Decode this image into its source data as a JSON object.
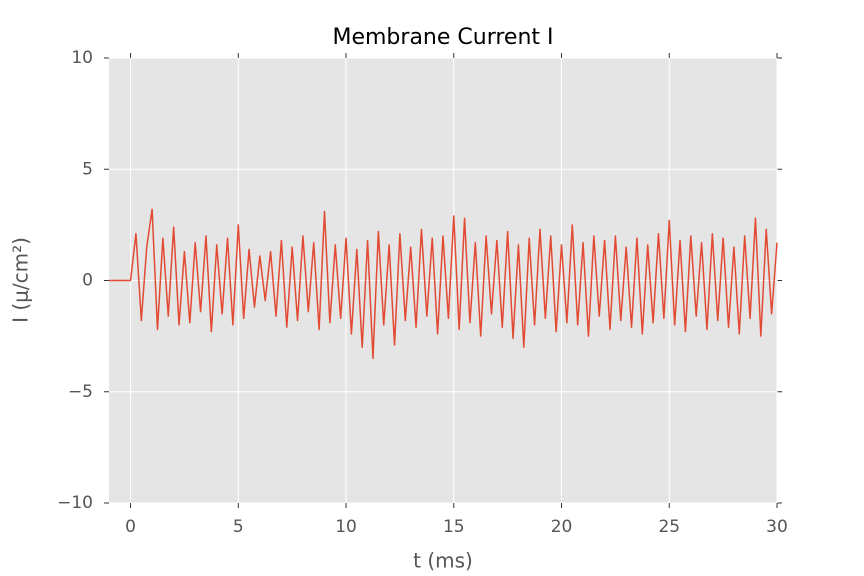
{
  "chart_data": {
    "type": "line",
    "title": "Membrane Current I",
    "xlabel": "t (ms)",
    "ylabel": "I (μ/cm²)",
    "color": "#e24a33",
    "xlim": [
      -1,
      30
    ],
    "ylim": [
      -10,
      10
    ],
    "xticks": [
      0,
      5,
      10,
      15,
      20,
      25,
      30
    ],
    "yticks": [
      {
        "value": -10,
        "label": "−10"
      },
      {
        "value": -5,
        "label": "−5"
      },
      0,
      5,
      10
    ],
    "grid": true,
    "x": [
      -1,
      0,
      0.25,
      0.5,
      0.75,
      1,
      1.25,
      1.5,
      1.75,
      2,
      2.25,
      2.5,
      2.75,
      3,
      3.25,
      3.5,
      3.75,
      4,
      4.25,
      4.5,
      4.75,
      5,
      5.25,
      5.5,
      5.75,
      6,
      6.25,
      6.5,
      6.75,
      7,
      7.25,
      7.5,
      7.75,
      8,
      8.25,
      8.5,
      8.75,
      9,
      9.25,
      9.5,
      9.75,
      10,
      10.25,
      10.5,
      10.75,
      11,
      11.25,
      11.5,
      11.75,
      12,
      12.25,
      12.5,
      12.75,
      13,
      13.25,
      13.5,
      13.75,
      14,
      14.25,
      14.5,
      14.75,
      15,
      15.25,
      15.5,
      15.75,
      16,
      16.25,
      16.5,
      16.75,
      17,
      17.25,
      17.5,
      17.75,
      18,
      18.25,
      18.5,
      18.75,
      19,
      19.25,
      19.5,
      19.75,
      20,
      20.25,
      20.5,
      20.75,
      21,
      21.25,
      21.5,
      21.75,
      22,
      22.25,
      22.5,
      22.75,
      23,
      23.25,
      23.5,
      23.75,
      24,
      24.25,
      24.5,
      24.75,
      25,
      25.25,
      25.5,
      25.75,
      26,
      26.25,
      26.5,
      26.75,
      27,
      27.25,
      27.5,
      27.75,
      28,
      28.25,
      28.5,
      28.75,
      29,
      29.25,
      29.5,
      29.75,
      30
    ],
    "values": [
      0,
      0,
      2.1,
      -1.8,
      1.5,
      3.2,
      -2.2,
      1.9,
      -1.6,
      2.4,
      -2.0,
      1.3,
      -1.9,
      1.7,
      -1.4,
      2.0,
      -2.3,
      1.6,
      -1.5,
      1.9,
      -2.0,
      2.5,
      -1.7,
      1.4,
      -1.2,
      1.1,
      -0.9,
      1.3,
      -1.6,
      1.8,
      -2.1,
      1.5,
      -1.8,
      2.0,
      -1.4,
      1.7,
      -2.2,
      3.1,
      -1.9,
      1.6,
      -1.7,
      1.9,
      -2.4,
      1.4,
      -3.0,
      1.8,
      -3.5,
      2.2,
      -2.0,
      1.6,
      -2.9,
      2.1,
      -1.8,
      1.5,
      -2.1,
      2.3,
      -1.6,
      1.9,
      -2.4,
      2.0,
      -1.7,
      2.9,
      -2.2,
      2.8,
      -1.9,
      1.7,
      -2.5,
      2.0,
      -1.5,
      1.8,
      -2.1,
      2.2,
      -2.6,
      1.6,
      -3.0,
      1.9,
      -2.0,
      2.3,
      -1.7,
      2.0,
      -2.3,
      1.6,
      -1.9,
      2.5,
      -2.0,
      1.7,
      -2.5,
      2.0,
      -1.6,
      1.8,
      -2.2,
      2.0,
      -1.8,
      1.5,
      -2.1,
      1.9,
      -2.4,
      1.6,
      -1.9,
      2.1,
      -1.7,
      2.7,
      -2.0,
      1.8,
      -2.3,
      2.0,
      -1.6,
      1.7,
      -2.2,
      2.1,
      -1.8,
      1.9,
      -2.1,
      1.5,
      -2.4,
      2.0,
      -1.7,
      2.8,
      -2.5,
      2.3,
      -1.5,
      1.7
    ]
  }
}
